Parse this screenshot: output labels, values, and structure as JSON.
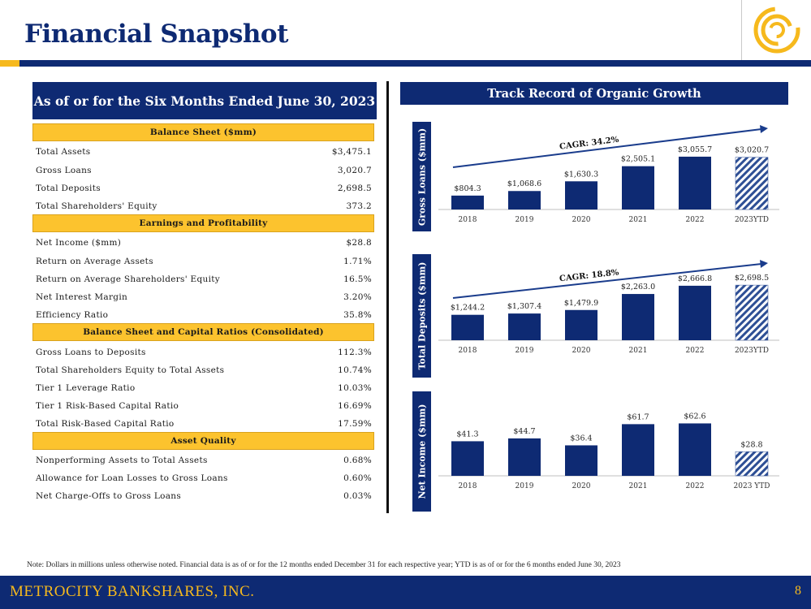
{
  "page": {
    "title": "Financial Snapshot",
    "page_number": "8"
  },
  "footer": {
    "brand": "METROCITY BANKSHARES, INC."
  },
  "note": "Note: Dollars in millions unless otherwise noted. Financial data is as of or for the 12 months ended December 31 for each respective year; YTD is as of or for the 6 months ended June 30, 2023",
  "left_panel": {
    "header": "As of or for the Six Months Ended June 30, 2023",
    "sections": [
      {
        "title": "Balance Sheet ($mm)",
        "rows": [
          {
            "label": "Total Assets",
            "value": "$3,475.1"
          },
          {
            "label": "Gross Loans",
            "value": "3,020.7"
          },
          {
            "label": "Total Deposits",
            "value": "2,698.5"
          },
          {
            "label": "Total Shareholders' Equity",
            "value": "373.2"
          }
        ]
      },
      {
        "title": "Earnings and Profitability",
        "rows": [
          {
            "label": "Net Income ($mm)",
            "value": "$28.8"
          },
          {
            "label": "Return on Average Assets",
            "value": "1.71%"
          },
          {
            "label": "Return on Average Shareholders' Equity",
            "value": "16.5%"
          },
          {
            "label": "Net Interest Margin",
            "value": "3.20%"
          },
          {
            "label": "Efficiency Ratio",
            "value": "35.8%"
          }
        ]
      },
      {
        "title": "Balance Sheet and Capital Ratios (Consolidated)",
        "rows": [
          {
            "label": "Gross Loans to Deposits",
            "value": "112.3%"
          },
          {
            "label": "Total Shareholders Equity to Total Assets",
            "value": "10.74%"
          },
          {
            "label": "Tier 1 Leverage Ratio",
            "value": "10.03%"
          },
          {
            "label": "Tier 1 Risk-Based Capital Ratio",
            "value": "16.69%"
          },
          {
            "label": "Total Risk-Based Capital Ratio",
            "value": "17.59%"
          }
        ]
      },
      {
        "title": "Asset Quality",
        "rows": [
          {
            "label": "Nonperforming Assets to Total Assets",
            "value": "0.68%"
          },
          {
            "label": "Allowance for Loan Losses to Gross Loans",
            "value": "0.60%"
          },
          {
            "label": "Net Charge-Offs to Gross Loans",
            "value": "0.03%"
          }
        ]
      }
    ]
  },
  "right_panel": {
    "header": "Track Record of Organic Growth"
  },
  "colors": {
    "navy": "#0e2a73",
    "gold": "#fcc32e",
    "hatch": "#2e4f95"
  },
  "chart_data": [
    {
      "type": "bar",
      "ylabel": "Gross Loans ($mm)",
      "categories": [
        "2018",
        "2019",
        "2020",
        "2021",
        "2022",
        "2023YTD"
      ],
      "values": [
        804.3,
        1068.6,
        1630.3,
        2505.1,
        3055.7,
        3020.7
      ],
      "labels": [
        "$804.3",
        "$1,068.6",
        "$1,630.3",
        "$2,505.1",
        "$3,055.7",
        "$3,020.7"
      ],
      "hatched_index": 5,
      "annotation": "CAGR: 34.2%",
      "ylim": [
        0,
        3100
      ]
    },
    {
      "type": "bar",
      "ylabel": "Total Deposits ($mm)",
      "categories": [
        "2018",
        "2019",
        "2020",
        "2021",
        "2022",
        "2023YTD"
      ],
      "values": [
        1244.2,
        1307.4,
        1479.9,
        2263.0,
        2666.8,
        2698.5
      ],
      "labels": [
        "$1,244.2",
        "$1,307.4",
        "$1,479.9",
        "$2,263.0",
        "$2,666.8",
        "$2,698.5"
      ],
      "hatched_index": 5,
      "annotation": "CAGR: 18.8%",
      "ylim": [
        0,
        3100
      ]
    },
    {
      "type": "bar",
      "ylabel": "Net Income ($mm)",
      "categories": [
        "2018",
        "2019",
        "2020",
        "2021",
        "2022",
        "2023 YTD"
      ],
      "values": [
        41.3,
        44.7,
        36.4,
        61.7,
        62.6,
        28.8
      ],
      "labels": [
        "$41.3",
        "$44.7",
        "$36.4",
        "$61.7",
        "$62.6",
        "$28.8"
      ],
      "hatched_index": 5,
      "annotation": "",
      "ylim": [
        0,
        64
      ]
    }
  ]
}
